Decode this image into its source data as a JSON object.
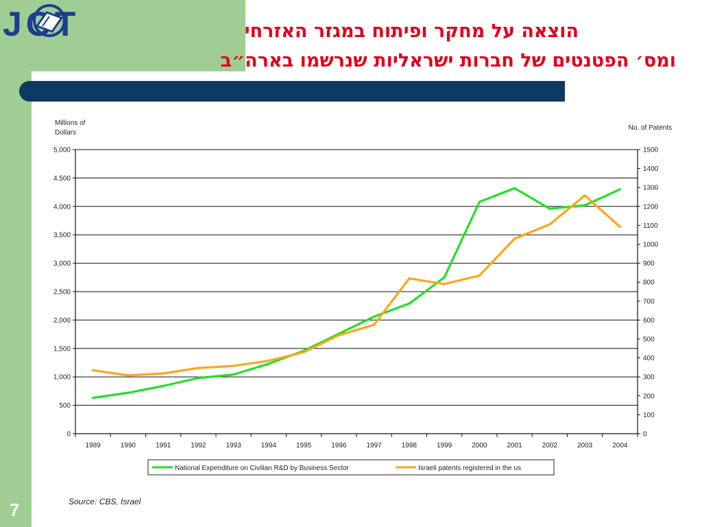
{
  "slide": {
    "title_lines": [
      "הוצאה על מחקר ופיתוח במגזר האזרחי",
      "ומס׳ הפטנטים של חברות ישראליות שנרשמו בארה״ב"
    ],
    "page_number": "7",
    "source": "Source: CBS, Israel",
    "logo_text": "JCT",
    "colors": {
      "green_panel": "#9fcd93",
      "title_bar": "#0d3a63",
      "title_text": "#e0001b"
    }
  },
  "chart_data": {
    "type": "line",
    "title": "",
    "categories": [
      "1989",
      "1990",
      "1991",
      "1992",
      "1993",
      "1994",
      "1995",
      "1996",
      "1997",
      "1998",
      "1999",
      "2000",
      "2001",
      "2002",
      "2003",
      "2004"
    ],
    "y_left": {
      "label_lines": [
        "Millions of",
        "Dollars"
      ],
      "range": [
        0,
        5000
      ],
      "ticks": [
        "0",
        "500",
        "1,000",
        "1,500",
        "2,000",
        "2,500",
        "3,000",
        "3,500",
        "4,000",
        "4,500",
        "5,000"
      ]
    },
    "y_right": {
      "label": "No. of Patents",
      "range": [
        0,
        1500
      ],
      "ticks": [
        "0",
        "100",
        "200",
        "300",
        "400",
        "500",
        "600",
        "700",
        "800",
        "900",
        "1000",
        "1100",
        "1200",
        "1300",
        "1400",
        "1500"
      ]
    },
    "grid": "horizontal",
    "legend_position": "bottom",
    "series": [
      {
        "name": "National Expenditure on Civilian R&D by Business  Sector",
        "axis": "left",
        "color": "#22e022",
        "values": [
          630,
          720,
          840,
          980,
          1040,
          1230,
          1460,
          1760,
          2060,
          2290,
          2750,
          4080,
          4320,
          3960,
          4020,
          4300
        ]
      },
      {
        "name": "Israeli patents registered in the us",
        "axis": "right",
        "color": "#ffa41c",
        "values": [
          335,
          308,
          318,
          347,
          358,
          385,
          430,
          520,
          575,
          820,
          790,
          835,
          1030,
          1105,
          1258,
          1092
        ]
      }
    ]
  }
}
